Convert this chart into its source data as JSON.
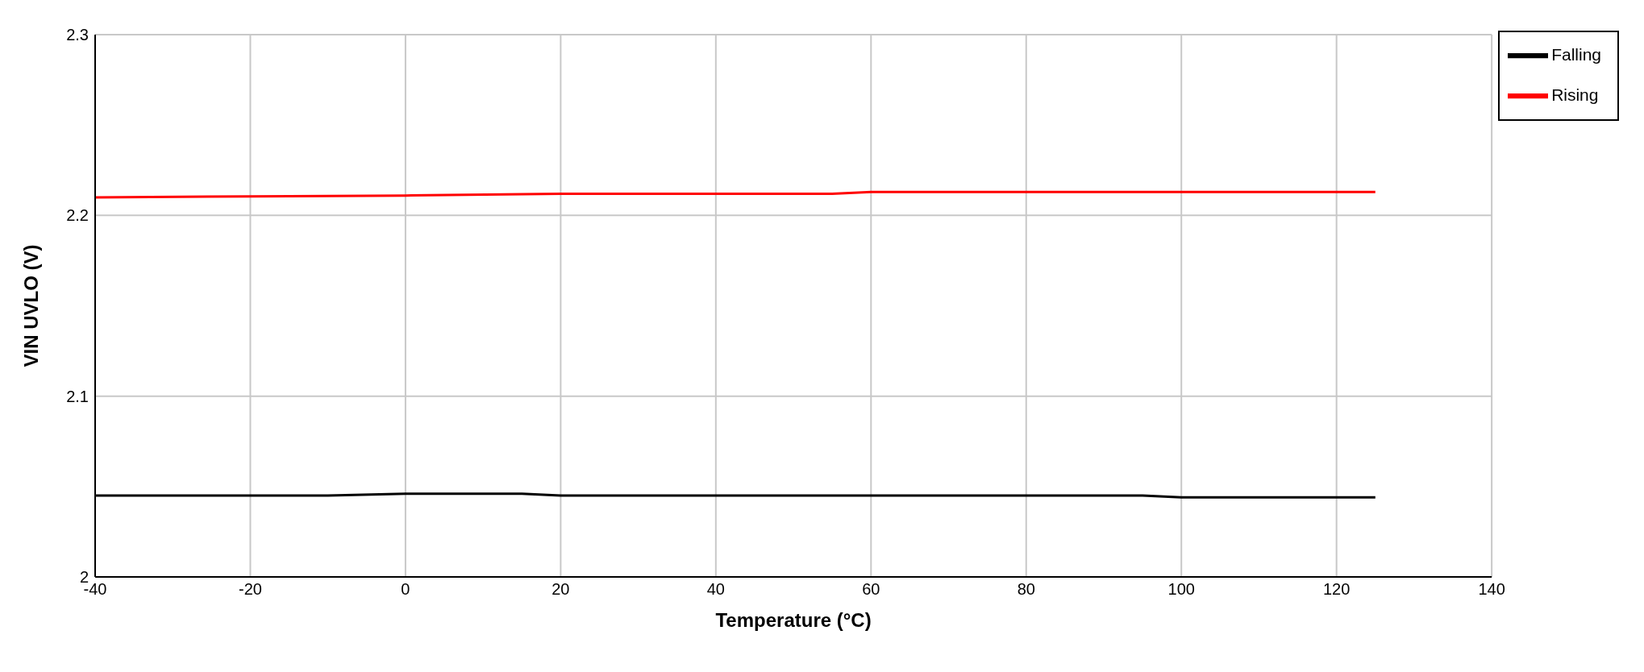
{
  "chart_data": {
    "type": "line",
    "xlabel": "Temperature (°C)",
    "ylabel": "VIN UVLO (V)",
    "xlim": [
      -40,
      140
    ],
    "xticks": [
      -40,
      -20,
      0,
      20,
      40,
      60,
      80,
      100,
      120,
      140
    ],
    "ylim": [
      2,
      2.3
    ],
    "yticks": [
      2,
      2.1,
      2.2,
      2.3
    ],
    "grid": true,
    "legend": "top right",
    "marker": "none",
    "line_style": "solid",
    "series": [
      {
        "name": "Rising",
        "color": "#ff0000",
        "x": [
          -40,
          -20,
          0,
          20,
          40,
          55,
          60,
          80,
          100,
          125
        ],
        "values": [
          2.21,
          2.2105,
          2.211,
          2.212,
          2.212,
          2.212,
          2.213,
          2.213,
          2.213,
          2.213
        ]
      },
      {
        "name": "Falling",
        "color": "#000000",
        "x": [
          -40,
          -10,
          0,
          15,
          20,
          55,
          95,
          100,
          125
        ],
        "values": [
          2.045,
          2.045,
          2.046,
          2.046,
          2.045,
          2.045,
          2.045,
          2.044,
          2.044
        ]
      }
    ]
  }
}
